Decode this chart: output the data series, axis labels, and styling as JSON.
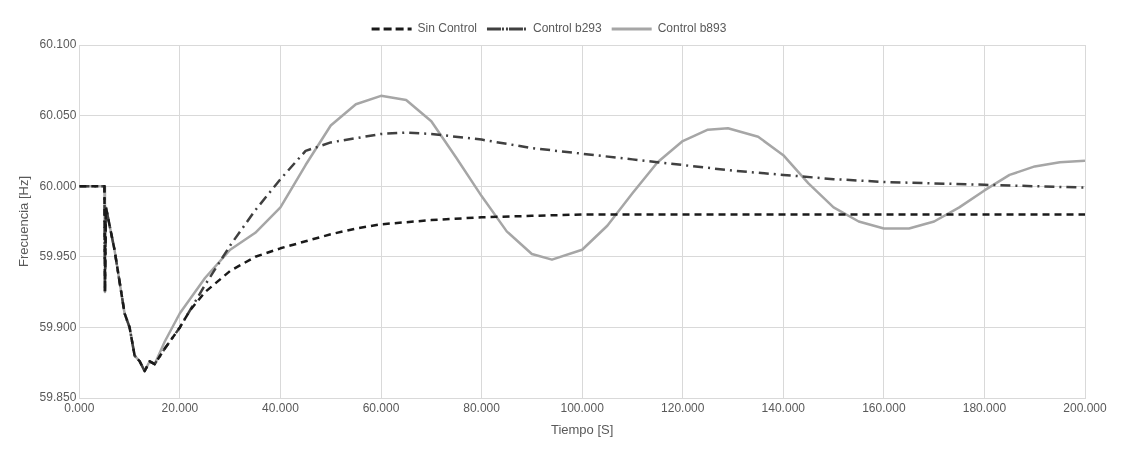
{
  "chart_data": {
    "type": "line",
    "xlabel": "Tiempo [S]",
    "ylabel": "Frecuencia [Hz]",
    "legend": "top",
    "grid": true,
    "marker": "none",
    "xlim": [
      0,
      200
    ],
    "xticks": [
      {
        "value": 0,
        "label": "0.000"
      },
      {
        "value": 20,
        "label": "20.000"
      },
      {
        "value": 40,
        "label": "40.000"
      },
      {
        "value": 60,
        "label": "60.000"
      },
      {
        "value": 80,
        "label": "80.000"
      },
      {
        "value": 100,
        "label": "100.000"
      },
      {
        "value": 120,
        "label": "120.000"
      },
      {
        "value": 140,
        "label": "140.000"
      },
      {
        "value": 160,
        "label": "160.000"
      },
      {
        "value": 180,
        "label": "180.000"
      },
      {
        "value": 200,
        "label": "200.000"
      }
    ],
    "ylim": [
      59.85,
      60.1
    ],
    "yticks": [
      {
        "value": 59.85,
        "label": "59.850"
      },
      {
        "value": 59.9,
        "label": "59.900"
      },
      {
        "value": 59.95,
        "label": "59.950"
      },
      {
        "value": 60,
        "label": "60.000"
      },
      {
        "value": 60.05,
        "label": "60.050"
      },
      {
        "value": 60.1,
        "label": "60.100"
      }
    ],
    "series": [
      {
        "name": "Sin Control",
        "color": "#1a1a1a",
        "line_style": "dashed",
        "x": [
          0,
          5,
          5.1,
          5.3,
          7,
          9,
          10,
          11,
          12,
          13,
          14,
          15,
          17,
          20,
          22,
          25,
          30,
          35,
          40,
          45,
          50,
          55,
          60,
          70,
          80,
          90,
          100,
          120,
          200
        ],
        "values": [
          60,
          60,
          59.925,
          59.985,
          59.955,
          59.91,
          59.9,
          59.88,
          59.876,
          59.869,
          59.876,
          59.874,
          59.885,
          59.9,
          59.912,
          59.925,
          59.94,
          59.95,
          59.956,
          59.961,
          59.966,
          59.97,
          59.973,
          59.976,
          59.978,
          59.979,
          59.98,
          59.98,
          59.98
        ]
      },
      {
        "name": "Control b293",
        "color": "#404040",
        "line_style": "dashdot",
        "x": [
          0,
          5,
          5.1,
          5.3,
          7,
          9,
          10,
          11,
          12,
          13,
          14,
          15,
          17,
          20,
          25,
          30,
          35,
          40,
          45,
          50,
          55,
          60,
          65,
          70,
          80,
          90,
          100,
          110,
          120,
          130,
          140,
          150,
          160,
          170,
          180,
          190,
          200
        ],
        "values": [
          60,
          60,
          59.925,
          59.985,
          59.955,
          59.91,
          59.9,
          59.88,
          59.876,
          59.869,
          59.876,
          59.874,
          59.885,
          59.9,
          59.93,
          59.958,
          59.983,
          60.005,
          60.025,
          60.031,
          60.034,
          60.037,
          60.038,
          60.037,
          60.033,
          60.027,
          60.023,
          60.019,
          60.015,
          60.011,
          60.008,
          60.005,
          60.003,
          60.002,
          60.001,
          60,
          59.999
        ]
      },
      {
        "name": "Control b893",
        "color": "#a6a6a6",
        "line_style": "solid",
        "x": [
          0,
          5,
          5.1,
          5.3,
          7,
          9,
          10,
          11,
          12,
          13,
          14,
          15,
          17,
          20,
          25,
          30,
          35,
          40,
          45,
          50,
          55,
          60,
          65,
          70,
          75,
          80,
          85,
          90,
          94,
          100,
          105,
          110,
          115,
          120,
          125,
          129,
          135,
          140,
          145,
          150,
          155,
          160,
          165,
          170,
          175,
          180,
          185,
          190,
          195,
          200
        ],
        "values": [
          60,
          60,
          59.925,
          59.985,
          59.955,
          59.91,
          59.9,
          59.88,
          59.876,
          59.869,
          59.876,
          59.874,
          59.89,
          59.91,
          59.935,
          59.955,
          59.967,
          59.985,
          60.015,
          60.043,
          60.058,
          60.064,
          60.061,
          60.046,
          60.02,
          59.993,
          59.968,
          59.952,
          59.948,
          59.955,
          59.972,
          59.995,
          60.017,
          60.032,
          60.04,
          60.041,
          60.035,
          60.022,
          60.002,
          59.985,
          59.975,
          59.97,
          59.97,
          59.975,
          59.985,
          59.997,
          60.008,
          60.014,
          60.017,
          60.018
        ]
      }
    ]
  }
}
